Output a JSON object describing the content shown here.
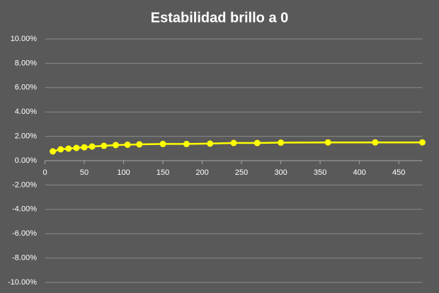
{
  "chart_data": {
    "type": "line",
    "title": "Estabilidad brillo a 0",
    "x": [
      10,
      20,
      30,
      40,
      50,
      60,
      75,
      90,
      105,
      120,
      150,
      180,
      210,
      240,
      270,
      300,
      360,
      420,
      480
    ],
    "series": [
      {
        "color": "#ffff00",
        "values": [
          0.76,
          0.93,
          0.99,
          1.05,
          1.1,
          1.16,
          1.22,
          1.28,
          1.31,
          1.34,
          1.37,
          1.37,
          1.4,
          1.45,
          1.45,
          1.48,
          1.5,
          1.5,
          1.5
        ]
      }
    ],
    "xlim": [
      0,
      480
    ],
    "xticks": [
      0,
      50,
      100,
      150,
      200,
      250,
      300,
      350,
      400,
      450
    ],
    "ylim": [
      -10,
      10
    ],
    "yticks": [
      {
        "value": -10,
        "label": "-10.00%"
      },
      {
        "value": -8,
        "label": "-8.00%"
      },
      {
        "value": -6,
        "label": "-6.00%"
      },
      {
        "value": -4,
        "label": "-4.00%"
      },
      {
        "value": -2,
        "label": "-2.00%"
      },
      {
        "value": 0,
        "label": "0.00%"
      },
      {
        "value": 2,
        "label": "2.00%"
      },
      {
        "value": 4,
        "label": "4.00%"
      },
      {
        "value": 6,
        "label": "6.00%"
      },
      {
        "value": 8,
        "label": "8.00%"
      },
      {
        "value": 10,
        "label": "10.00%"
      }
    ],
    "grid": true
  }
}
